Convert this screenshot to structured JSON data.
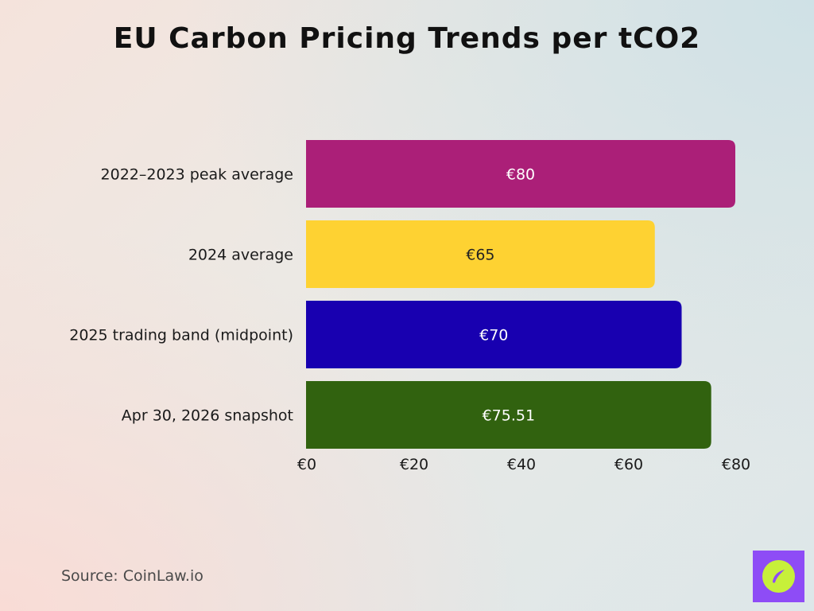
{
  "chart_data": {
    "type": "bar",
    "orientation": "horizontal",
    "title": "EU Carbon Pricing Trends per tCO2",
    "categories": [
      "2022–2023 peak average",
      "2024 average",
      "2025 trading band (midpoint)",
      "Apr 30, 2026 snapshot"
    ],
    "values": [
      80,
      65,
      70,
      75.51
    ],
    "data_labels": [
      "€80",
      "€65",
      "€70",
      "€75.51"
    ],
    "bar_colors": [
      "#ab1f78",
      "#fed232",
      "#1800b0",
      "#31620f"
    ],
    "label_colors": [
      "#ffffff",
      "#222222",
      "#ffffff",
      "#ffffff"
    ],
    "xlim": [
      0,
      80
    ],
    "x_ticks": [
      0,
      20,
      40,
      60,
      80
    ],
    "x_tick_labels": [
      "€0",
      "€20",
      "€40",
      "€60",
      "€80"
    ],
    "xlabel": "",
    "ylabel": "",
    "grid": false,
    "legend": "none"
  },
  "footer": {
    "source": "Source: CoinLaw.io"
  },
  "logo": {
    "icon": "compass-leaf-icon",
    "background": "#8e4cf6",
    "accent": "#c7f03a"
  }
}
